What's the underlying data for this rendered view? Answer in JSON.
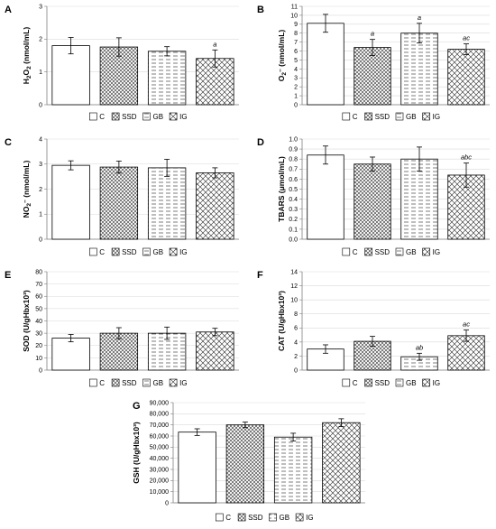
{
  "legend_labels": [
    "C",
    "SSD",
    "GB",
    "IG"
  ],
  "chart_data": [
    {
      "panel": "A",
      "type": "bar",
      "categories": [
        "C",
        "SSD",
        "GB",
        "IG"
      ],
      "ylabel": "H2O2 (nmol/mL)",
      "ylim": [
        0,
        3
      ],
      "yticks": [
        0,
        1,
        2,
        3
      ],
      "series": [
        {
          "values": [
            1.8,
            1.76,
            1.63,
            1.41
          ],
          "errors": [
            0.25,
            0.28,
            0.14,
            0.26
          ]
        }
      ],
      "annotations": [
        "",
        "",
        "",
        "a"
      ]
    },
    {
      "panel": "B",
      "type": "bar",
      "categories": [
        "C",
        "SSD",
        "GB",
        "IG"
      ],
      "ylabel": "O2- (nmol/mL)",
      "ylim": [
        0,
        11
      ],
      "yticks": [
        0,
        1,
        2,
        3,
        4,
        5,
        6,
        7,
        8,
        9,
        10,
        11
      ],
      "series": [
        {
          "values": [
            9.1,
            6.4,
            8.0,
            6.2
          ],
          "errors": [
            1.0,
            0.9,
            1.1,
            0.6
          ]
        }
      ],
      "annotations": [
        "",
        "a",
        "a",
        "ac"
      ]
    },
    {
      "panel": "C",
      "type": "bar",
      "categories": [
        "C",
        "SSD",
        "GB",
        "IG"
      ],
      "ylabel": "NO2- (nmol/mL)",
      "ylim": [
        0,
        4
      ],
      "yticks": [
        0,
        1,
        2,
        3,
        4
      ],
      "series": [
        {
          "values": [
            2.95,
            2.88,
            2.85,
            2.65
          ],
          "errors": [
            0.18,
            0.24,
            0.34,
            0.2
          ]
        }
      ],
      "annotations": [
        "",
        "",
        "",
        ""
      ]
    },
    {
      "panel": "D",
      "type": "bar",
      "categories": [
        "C",
        "SSD",
        "GB",
        "IG"
      ],
      "ylabel": "TBARS (μmol/mL)",
      "ylim": [
        0,
        1
      ],
      "yticks": [
        "0.0",
        "0.1",
        "0.2",
        "0.3",
        "0.4",
        "0.5",
        "0.6",
        "0.7",
        "0.8",
        "0.9",
        "1.0"
      ],
      "series": [
        {
          "values": [
            0.84,
            0.75,
            0.8,
            0.64
          ],
          "errors": [
            0.09,
            0.07,
            0.12,
            0.12
          ]
        }
      ],
      "annotations": [
        "",
        "",
        "",
        "abc"
      ]
    },
    {
      "panel": "E",
      "type": "bar",
      "categories": [
        "C",
        "SSD",
        "GB",
        "IG"
      ],
      "ylabel": "SOD (U/gHbx10³)",
      "ylim": [
        0,
        80
      ],
      "yticks": [
        0,
        10,
        20,
        30,
        40,
        50,
        60,
        70,
        80
      ],
      "series": [
        {
          "values": [
            26,
            30,
            30,
            31
          ],
          "errors": [
            3,
            4.5,
            5,
            3
          ]
        }
      ],
      "annotations": [
        "",
        "",
        "",
        ""
      ]
    },
    {
      "panel": "F",
      "type": "bar",
      "categories": [
        "C",
        "SSD",
        "GB",
        "IG"
      ],
      "ylabel": "CAT (U/gHbx10³)",
      "ylim": [
        0,
        14
      ],
      "yticks": [
        0,
        2,
        4,
        6,
        8,
        10,
        12,
        14
      ],
      "series": [
        {
          "values": [
            3.0,
            4.1,
            1.9,
            4.9
          ],
          "errors": [
            0.6,
            0.7,
            0.5,
            0.8
          ]
        }
      ],
      "annotations": [
        "",
        "",
        "ab",
        "ac"
      ]
    },
    {
      "panel": "G",
      "type": "bar",
      "categories": [
        "C",
        "SSD",
        "GB",
        "IG"
      ],
      "ylabel": "GSH (U/gHbx10³)",
      "ylim": [
        0,
        90000
      ],
      "yticks": [
        "0",
        "10,000",
        "20,000",
        "30,000",
        "40,000",
        "50,000",
        "60,000",
        "70,000",
        "80,000",
        "90,000"
      ],
      "series": [
        {
          "values": [
            63500,
            70000,
            59000,
            72000
          ],
          "errors": [
            3000,
            2500,
            3500,
            3500
          ]
        }
      ],
      "annotations": [
        "",
        "",
        "",
        ""
      ]
    }
  ]
}
